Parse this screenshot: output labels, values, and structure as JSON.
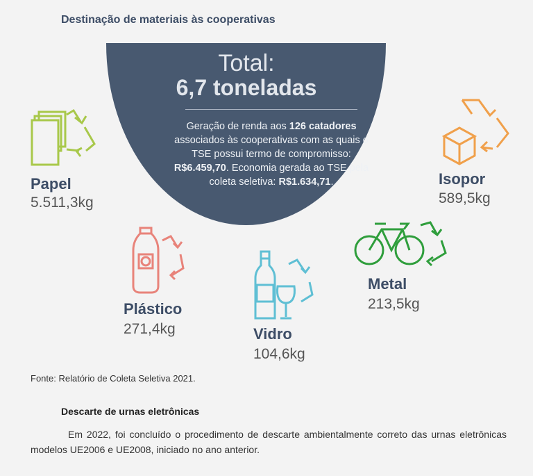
{
  "title": "Destinação de materiais às cooperativas",
  "total": {
    "label": "Total:",
    "value": "6,7 toneladas"
  },
  "description": {
    "p1": "Geração de renda aos ",
    "b1": "126 catadores",
    "p2": " associados às cooperativas com as quais o TSE possui termo de compromisso: ",
    "b2": "R$6.459,70",
    "p3": ". Economia gerada ao TSE pela coleta seletiva: ",
    "b3": "R$1.634,71",
    "p4": "."
  },
  "materials": {
    "papel": {
      "name": "Papel",
      "value": "5.511,3kg",
      "color": "#a8c84a",
      "icon": "paper-icon"
    },
    "plastico": {
      "name": "Plástico",
      "value": "271,4kg",
      "color": "#e8837a",
      "icon": "plastic-bottle-icon"
    },
    "vidro": {
      "name": "Vidro",
      "value": "104,6kg",
      "color": "#5fbfd4",
      "icon": "glass-bottle-icon"
    },
    "metal": {
      "name": "Metal",
      "value": "213,5kg",
      "color": "#2f9e3c",
      "icon": "bicycle-icon"
    },
    "isopor": {
      "name": "Isopor",
      "value": "589,5kg",
      "color": "#f0a04b",
      "icon": "box-icon"
    }
  },
  "source": "Fonte: Relatório de Coleta Seletiva 2021.",
  "section": {
    "heading": "Descarte de urnas eletrônicas",
    "paragraph": "Em 2022, foi concluído o procedimento de descarte ambientalmente correto das urnas eletrônicas modelos UE2006 e UE2008, iniciado no ano anterior."
  }
}
